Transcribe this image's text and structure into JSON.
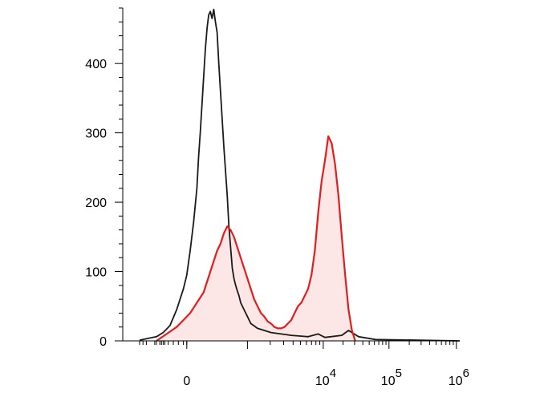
{
  "chart_data": {
    "type": "area",
    "title": "",
    "xlabel": "",
    "ylabel": "",
    "x_scale": "biexponential",
    "ylim": [
      0,
      480
    ],
    "y_ticks": [
      0,
      100,
      200,
      300,
      400
    ],
    "y_tick_labels": [
      "0",
      "100",
      "200",
      "300",
      "400"
    ],
    "x_ticks": [
      {
        "label": "0",
        "exp": ""
      },
      {
        "label": "10",
        "exp": "4"
      },
      {
        "label": "10",
        "exp": "5"
      },
      {
        "label": "10",
        "exp": "6"
      }
    ],
    "grid": false,
    "legend": "none",
    "series": [
      {
        "color": "#1a1a1a",
        "fill": "none",
        "points": [
          [
            0.05,
            1
          ],
          [
            0.08,
            4
          ],
          [
            0.1,
            6
          ],
          [
            0.12,
            12
          ],
          [
            0.14,
            22
          ],
          [
            0.16,
            45
          ],
          [
            0.18,
            75
          ],
          [
            0.19,
            95
          ],
          [
            0.2,
            130
          ],
          [
            0.21,
            170
          ],
          [
            0.22,
            220
          ],
          [
            0.225,
            265
          ],
          [
            0.23,
            300
          ],
          [
            0.235,
            340
          ],
          [
            0.24,
            380
          ],
          [
            0.245,
            420
          ],
          [
            0.25,
            450
          ],
          [
            0.255,
            470
          ],
          [
            0.26,
            475
          ],
          [
            0.265,
            465
          ],
          [
            0.27,
            478
          ],
          [
            0.275,
            460
          ],
          [
            0.28,
            445
          ],
          [
            0.285,
            400
          ],
          [
            0.29,
            360
          ],
          [
            0.295,
            320
          ],
          [
            0.3,
            280
          ],
          [
            0.305,
            245
          ],
          [
            0.31,
            210
          ],
          [
            0.315,
            165
          ],
          [
            0.32,
            135
          ],
          [
            0.325,
            105
          ],
          [
            0.33,
            90
          ],
          [
            0.335,
            80
          ],
          [
            0.34,
            72
          ],
          [
            0.345,
            65
          ],
          [
            0.35,
            55
          ],
          [
            0.36,
            45
          ],
          [
            0.37,
            35
          ],
          [
            0.38,
            25
          ],
          [
            0.4,
            18
          ],
          [
            0.42,
            15
          ],
          [
            0.44,
            12
          ],
          [
            0.47,
            10
          ],
          [
            0.5,
            8
          ],
          [
            0.55,
            6
          ],
          [
            0.58,
            10
          ],
          [
            0.6,
            5
          ],
          [
            0.65,
            8
          ],
          [
            0.67,
            15
          ],
          [
            0.7,
            6
          ],
          [
            0.75,
            2
          ],
          [
            1.0,
            0
          ]
        ]
      },
      {
        "color": "#e11d1d",
        "fill": "#fde6e6",
        "points": [
          [
            0.1,
            0
          ],
          [
            0.13,
            10
          ],
          [
            0.16,
            20
          ],
          [
            0.18,
            30
          ],
          [
            0.2,
            40
          ],
          [
            0.22,
            55
          ],
          [
            0.24,
            70
          ],
          [
            0.25,
            85
          ],
          [
            0.26,
            100
          ],
          [
            0.27,
            115
          ],
          [
            0.28,
            130
          ],
          [
            0.29,
            140
          ],
          [
            0.3,
            155
          ],
          [
            0.31,
            165
          ],
          [
            0.32,
            160
          ],
          [
            0.33,
            150
          ],
          [
            0.34,
            135
          ],
          [
            0.35,
            120
          ],
          [
            0.36,
            105
          ],
          [
            0.37,
            90
          ],
          [
            0.38,
            75
          ],
          [
            0.39,
            60
          ],
          [
            0.4,
            50
          ],
          [
            0.41,
            40
          ],
          [
            0.42,
            35
          ],
          [
            0.43,
            28
          ],
          [
            0.44,
            25
          ],
          [
            0.45,
            20
          ],
          [
            0.46,
            18
          ],
          [
            0.47,
            18
          ],
          [
            0.48,
            20
          ],
          [
            0.49,
            25
          ],
          [
            0.5,
            30
          ],
          [
            0.51,
            40
          ],
          [
            0.52,
            50
          ],
          [
            0.53,
            55
          ],
          [
            0.54,
            65
          ],
          [
            0.55,
            75
          ],
          [
            0.56,
            95
          ],
          [
            0.57,
            130
          ],
          [
            0.58,
            185
          ],
          [
            0.59,
            230
          ],
          [
            0.6,
            260
          ],
          [
            0.61,
            295
          ],
          [
            0.615,
            290
          ],
          [
            0.62,
            285
          ],
          [
            0.625,
            270
          ],
          [
            0.63,
            255
          ],
          [
            0.64,
            210
          ],
          [
            0.65,
            150
          ],
          [
            0.66,
            95
          ],
          [
            0.67,
            45
          ],
          [
            0.68,
            15
          ],
          [
            0.69,
            0
          ]
        ]
      }
    ]
  }
}
